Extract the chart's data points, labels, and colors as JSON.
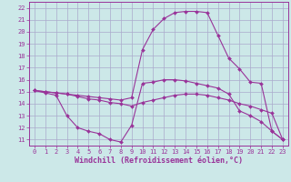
{
  "xlabel": "Windchill (Refroidissement éolien,°C)",
  "bg_color": "#cce8e8",
  "line_color": "#993399",
  "grid_color": "#aaaacc",
  "xlim": [
    -0.5,
    23.5
  ],
  "ylim": [
    10.5,
    22.5
  ],
  "xticks": [
    0,
    1,
    2,
    3,
    4,
    5,
    6,
    7,
    8,
    9,
    10,
    11,
    12,
    13,
    14,
    15,
    16,
    17,
    18,
    19,
    20,
    21,
    22,
    23
  ],
  "yticks": [
    11,
    12,
    13,
    14,
    15,
    16,
    17,
    18,
    19,
    20,
    21,
    22
  ],
  "line1_x": [
    0,
    1,
    2,
    3,
    4,
    5,
    6,
    7,
    8,
    9,
    10,
    11,
    12,
    13,
    14,
    15,
    16,
    17,
    18,
    19,
    20,
    21,
    22,
    23
  ],
  "line1_y": [
    15.1,
    14.9,
    14.7,
    13.0,
    12.0,
    11.7,
    11.5,
    11.0,
    10.8,
    12.2,
    15.7,
    15.8,
    16.0,
    16.0,
    15.9,
    15.7,
    15.5,
    15.3,
    14.8,
    13.4,
    13.0,
    12.5,
    11.7,
    11.0
  ],
  "line2_x": [
    0,
    1,
    2,
    3,
    4,
    5,
    6,
    7,
    8,
    9,
    10,
    11,
    12,
    13,
    14,
    15,
    16,
    17,
    18,
    19,
    20,
    21,
    22,
    23
  ],
  "line2_y": [
    15.1,
    15.0,
    14.9,
    14.8,
    14.6,
    14.4,
    14.3,
    14.1,
    14.0,
    13.8,
    14.1,
    14.3,
    14.5,
    14.7,
    14.8,
    14.8,
    14.7,
    14.5,
    14.3,
    14.0,
    13.8,
    13.5,
    13.2,
    11.0
  ],
  "line3_x": [
    0,
    1,
    2,
    3,
    4,
    5,
    6,
    7,
    8,
    9,
    10,
    11,
    12,
    13,
    14,
    15,
    16,
    17,
    18,
    19,
    20,
    21,
    22,
    23
  ],
  "line3_y": [
    15.1,
    15.0,
    14.9,
    14.8,
    14.7,
    14.6,
    14.5,
    14.4,
    14.3,
    14.5,
    18.5,
    20.2,
    21.1,
    21.6,
    21.7,
    21.7,
    21.6,
    19.7,
    17.8,
    16.9,
    15.8,
    15.7,
    11.7,
    11.0
  ],
  "marker": "D",
  "marker_size": 2.0,
  "linewidth": 0.8,
  "label_fontsize": 6.0,
  "tick_fontsize": 5.0
}
